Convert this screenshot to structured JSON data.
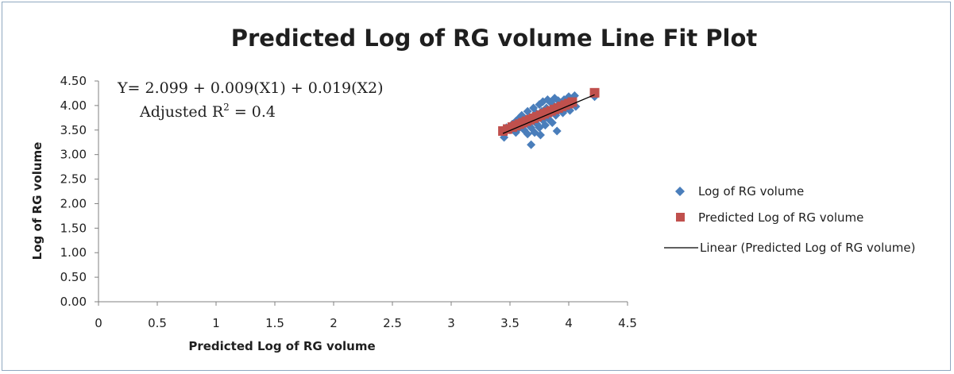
{
  "chart_data": {
    "type": "scatter",
    "title": "Predicted Log of RG volume Line Fit Plot",
    "xlabel": "Predicted Log of RG volume",
    "ylabel": "Log of RG volume",
    "xlim": [
      0,
      4.5
    ],
    "ylim": [
      0,
      4.5
    ],
    "x_ticks": [
      "0",
      "0.5",
      "1",
      "1.5",
      "2",
      "2.5",
      "3",
      "3.5",
      "4",
      "4.5"
    ],
    "y_ticks": [
      "0.00",
      "0.50",
      "1.00",
      "1.50",
      "2.00",
      "2.50",
      "3.00",
      "3.50",
      "4.00",
      "4.50"
    ],
    "grid": false,
    "legend_position": "right",
    "annotation": {
      "equation": "Y= 2.099 + 0.009(X1) + 0.019(X2)",
      "r2_prefix": "Adjusted R",
      "r2_sup": "2",
      "r2_suffix": " = 0.4"
    },
    "series": [
      {
        "name": "Log of RG volume",
        "marker": "diamond",
        "color": "#4a7ebb",
        "points": [
          [
            3.45,
            3.35
          ],
          [
            3.47,
            3.55
          ],
          [
            3.5,
            3.5
          ],
          [
            3.52,
            3.62
          ],
          [
            3.55,
            3.68
          ],
          [
            3.55,
            3.45
          ],
          [
            3.58,
            3.75
          ],
          [
            3.58,
            3.55
          ],
          [
            3.6,
            3.62
          ],
          [
            3.6,
            3.8
          ],
          [
            3.62,
            3.5
          ],
          [
            3.63,
            3.7
          ],
          [
            3.65,
            3.42
          ],
          [
            3.65,
            3.88
          ],
          [
            3.66,
            3.6
          ],
          [
            3.67,
            3.75
          ],
          [
            3.68,
            3.2
          ],
          [
            3.68,
            3.55
          ],
          [
            3.7,
            3.7
          ],
          [
            3.7,
            3.95
          ],
          [
            3.71,
            3.45
          ],
          [
            3.72,
            3.85
          ],
          [
            3.73,
            3.62
          ],
          [
            3.74,
            3.75
          ],
          [
            3.75,
            4.02
          ],
          [
            3.75,
            3.55
          ],
          [
            3.76,
            3.4
          ],
          [
            3.77,
            3.88
          ],
          [
            3.78,
            3.7
          ],
          [
            3.78,
            4.08
          ],
          [
            3.8,
            3.8
          ],
          [
            3.8,
            3.6
          ],
          [
            3.81,
            3.95
          ],
          [
            3.82,
            4.12
          ],
          [
            3.83,
            3.72
          ],
          [
            3.84,
            3.88
          ],
          [
            3.85,
            4.05
          ],
          [
            3.86,
            3.65
          ],
          [
            3.87,
            3.95
          ],
          [
            3.88,
            4.15
          ],
          [
            3.89,
            3.8
          ],
          [
            3.9,
            3.48
          ],
          [
            3.91,
            4.1
          ],
          [
            3.92,
            3.92
          ],
          [
            3.93,
            4.02
          ],
          [
            3.95,
            3.85
          ],
          [
            3.96,
            4.12
          ],
          [
            3.98,
            3.95
          ],
          [
            4.0,
            4.18
          ],
          [
            4.01,
            3.9
          ],
          [
            4.03,
            4.05
          ],
          [
            4.05,
            4.2
          ],
          [
            4.06,
            3.98
          ],
          [
            4.22,
            4.18
          ]
        ]
      },
      {
        "name": "Predicted Log of RG volume",
        "marker": "square",
        "color": "#c0504d",
        "points": [
          [
            3.44,
            3.48
          ],
          [
            3.48,
            3.52
          ],
          [
            3.52,
            3.56
          ],
          [
            3.55,
            3.59
          ],
          [
            3.58,
            3.62
          ],
          [
            3.61,
            3.65
          ],
          [
            3.64,
            3.68
          ],
          [
            3.67,
            3.71
          ],
          [
            3.7,
            3.74
          ],
          [
            3.73,
            3.77
          ],
          [
            3.76,
            3.8
          ],
          [
            3.79,
            3.83
          ],
          [
            3.82,
            3.86
          ],
          [
            3.85,
            3.89
          ],
          [
            3.88,
            3.92
          ],
          [
            3.91,
            3.95
          ],
          [
            3.94,
            3.98
          ],
          [
            3.97,
            4.01
          ],
          [
            4.0,
            4.04
          ],
          [
            4.03,
            4.07
          ],
          [
            4.22,
            4.26
          ]
        ]
      },
      {
        "name": "Linear (Predicted Log of RG volume)",
        "marker": "line",
        "color": "#000000",
        "points": [
          [
            3.44,
            3.43
          ],
          [
            4.22,
            4.22
          ]
        ]
      }
    ]
  }
}
